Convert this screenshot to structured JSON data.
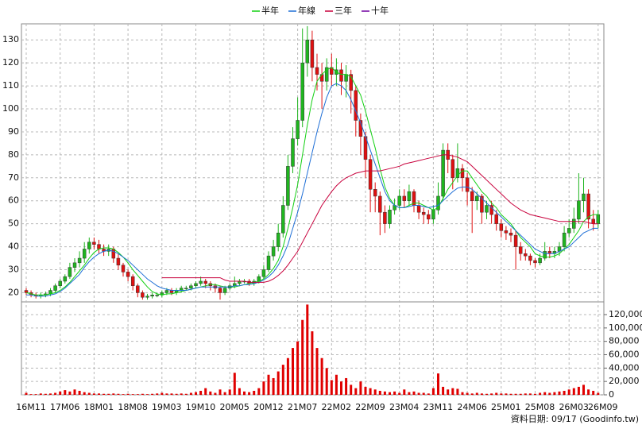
{
  "chart_data": {
    "type": "candlestick",
    "legend": "top",
    "grid": true,
    "footnote": "資料日期: 09/17 (Goodinfo.tw)",
    "up_color": "#1fb51f",
    "down_color": "#e01010",
    "volume_color": "#e00000",
    "categories": [
      "16M11",
      null,
      null,
      null,
      null,
      null,
      null,
      "17M06",
      null,
      null,
      null,
      null,
      null,
      null,
      "18M01",
      null,
      null,
      null,
      null,
      null,
      null,
      "18M08",
      null,
      null,
      null,
      null,
      null,
      null,
      "19M03",
      null,
      null,
      null,
      null,
      null,
      null,
      "19M10",
      null,
      null,
      null,
      null,
      null,
      null,
      "20M05",
      null,
      null,
      null,
      null,
      null,
      null,
      "20M12",
      null,
      null,
      null,
      null,
      null,
      null,
      "21M07",
      null,
      null,
      null,
      null,
      null,
      null,
      "22M02",
      null,
      null,
      null,
      null,
      null,
      null,
      "22M09",
      null,
      null,
      null,
      null,
      null,
      null,
      "23M04",
      null,
      null,
      null,
      null,
      null,
      null,
      "23M11",
      null,
      null,
      null,
      null,
      null,
      null,
      "24M06",
      null,
      null,
      null,
      null,
      null,
      null,
      "25M01",
      null,
      null,
      null,
      null,
      null,
      null,
      "25M08",
      null,
      null,
      null,
      null,
      null,
      null,
      "26M03",
      null,
      null,
      null,
      null,
      null,
      "26M09"
    ],
    "open": [
      21,
      20,
      19,
      18.5,
      19,
      19.5,
      21,
      23,
      25,
      27,
      31,
      33,
      35,
      39,
      42,
      41,
      39,
      38,
      39,
      35,
      32,
      29,
      27,
      23,
      20,
      18,
      18.5,
      19,
      19,
      20,
      21,
      20,
      21,
      22,
      22,
      23,
      24,
      25,
      24,
      23,
      22,
      20,
      22,
      23,
      24,
      25,
      25,
      24,
      25,
      27,
      30,
      36,
      40,
      46,
      58,
      75,
      87,
      95,
      120,
      130,
      118,
      115,
      112,
      118,
      115,
      117,
      112,
      115,
      108,
      95,
      88,
      78,
      65,
      62,
      55,
      50,
      56,
      58,
      62,
      60,
      64,
      58,
      55,
      54,
      52,
      56,
      62,
      82,
      78,
      70,
      74,
      70,
      64,
      60,
      62,
      55,
      58,
      54,
      50,
      47,
      46,
      45,
      40,
      37,
      36,
      34,
      33,
      35,
      38,
      37,
      38,
      40,
      46,
      48,
      52,
      60,
      63,
      52,
      50
    ],
    "high": [
      22,
      21,
      20,
      20,
      20.5,
      22,
      24,
      26,
      28,
      33,
      35,
      38,
      42,
      44,
      44,
      43,
      41,
      41,
      40,
      37,
      33,
      30,
      28,
      24,
      21,
      19.5,
      20,
      20,
      21,
      22,
      22,
      22,
      23,
      23,
      24,
      25,
      27,
      26,
      25,
      24,
      23,
      23,
      24,
      27,
      26,
      26,
      26,
      26,
      28,
      32,
      38,
      43,
      50,
      62,
      80,
      92,
      105,
      135,
      136,
      134,
      124,
      120,
      122,
      124,
      122,
      120,
      119,
      117,
      110,
      98,
      90,
      80,
      68,
      64,
      58,
      58,
      61,
      65,
      65,
      67,
      65,
      60,
      57,
      56,
      58,
      68,
      85,
      85,
      80,
      85,
      76,
      72,
      66,
      64,
      63,
      60,
      60,
      56,
      52,
      49,
      48,
      47,
      42,
      39,
      37,
      35,
      37,
      42,
      40,
      40,
      42,
      49,
      52,
      57,
      72,
      70,
      65,
      56,
      56
    ],
    "low": [
      19,
      18,
      17.5,
      17.5,
      18,
      18.5,
      20,
      22,
      24,
      26,
      29,
      31,
      33,
      37,
      39,
      37,
      36,
      36,
      33,
      30,
      27,
      25,
      21,
      18,
      17,
      17,
      17.5,
      18,
      18,
      19,
      19,
      19,
      20,
      21,
      21,
      22,
      23,
      22,
      21,
      20,
      17,
      19,
      21,
      22,
      23,
      24,
      23,
      23,
      24,
      26,
      29,
      34,
      38,
      44,
      56,
      72,
      84,
      92,
      114,
      112,
      108,
      100,
      108,
      110,
      110,
      106,
      105,
      98,
      88,
      80,
      70,
      55,
      55,
      45,
      46,
      48,
      54,
      56,
      57,
      58,
      55,
      52,
      50,
      50,
      50,
      54,
      60,
      72,
      65,
      68,
      64,
      58,
      46,
      56,
      50,
      52,
      50,
      47,
      44,
      43,
      42,
      30,
      34,
      34,
      32,
      31,
      32,
      34,
      35,
      35,
      36,
      38,
      44,
      46,
      50,
      55,
      48,
      47,
      48
    ],
    "close": [
      20,
      19,
      18.5,
      19,
      19.5,
      21,
      23,
      25,
      27,
      31,
      33,
      35,
      39,
      42,
      41,
      39,
      38,
      39,
      35,
      32,
      29,
      27,
      23,
      20,
      18,
      18.5,
      19,
      19,
      20,
      21,
      20,
      21,
      22,
      22,
      23,
      24,
      25,
      24,
      23,
      22,
      20,
      22,
      23,
      24,
      25,
      25,
      24,
      25,
      27,
      30,
      36,
      40,
      46,
      58,
      75,
      87,
      95,
      120,
      130,
      118,
      115,
      112,
      118,
      115,
      117,
      112,
      115,
      108,
      95,
      88,
      78,
      65,
      62,
      55,
      50,
      56,
      58,
      62,
      60,
      64,
      58,
      55,
      54,
      52,
      56,
      62,
      82,
      78,
      70,
      74,
      70,
      64,
      60,
      62,
      55,
      58,
      54,
      50,
      47,
      46,
      45,
      40,
      37,
      36,
      34,
      33,
      35,
      38,
      37,
      38,
      40,
      46,
      48,
      52,
      60,
      63,
      52,
      50,
      54
    ],
    "volume": [
      3000,
      1000,
      1000,
      2000,
      1500,
      2000,
      3000,
      5000,
      7000,
      5000,
      8000,
      6000,
      4000,
      3000,
      2000,
      2000,
      1500,
      1500,
      2000,
      1500,
      1000,
      1500,
      1000,
      1000,
      1500,
      1000,
      1500,
      2000,
      3000,
      2000,
      2000,
      1500,
      2000,
      1500,
      3000,
      4000,
      6000,
      10000,
      5000,
      3000,
      8000,
      4000,
      8000,
      33000,
      10000,
      5000,
      4000,
      6000,
      10000,
      20000,
      30000,
      25000,
      35000,
      45000,
      55000,
      70000,
      80000,
      112000,
      135000,
      95000,
      70000,
      55000,
      40000,
      22000,
      30000,
      20000,
      25000,
      15000,
      10000,
      20000,
      12000,
      10000,
      8000,
      6000,
      5000,
      4000,
      5000,
      3000,
      8000,
      4000,
      5000,
      3000,
      3000,
      2000,
      10000,
      32000,
      12000,
      8000,
      10000,
      9000,
      4000,
      3000,
      2000,
      3000,
      2000,
      1500,
      2000,
      3000,
      2000,
      2000,
      1500,
      1500,
      1500,
      2000,
      2000,
      1500,
      3000,
      4000,
      3000,
      4000,
      5000,
      6000,
      8000,
      10000,
      12000,
      15000,
      8000,
      6000,
      3000
    ],
    "series": [
      {
        "name": "半年",
        "color": "#12d012",
        "values": [
          20,
          19.5,
          19,
          19,
          19,
          19.5,
          20,
          21,
          22.5,
          24.5,
          27,
          29.5,
          32,
          35,
          37.5,
          39,
          39.5,
          39.5,
          39,
          37.5,
          35.5,
          33,
          30,
          27.5,
          25,
          22.5,
          20.5,
          19.5,
          19,
          19.5,
          19.5,
          20,
          20.5,
          21,
          21.5,
          22,
          22.5,
          23,
          23.5,
          23.5,
          23,
          22.5,
          22.5,
          22.5,
          23,
          23.5,
          24,
          24.5,
          25,
          26,
          28,
          30.5,
          34,
          40,
          48,
          57,
          67,
          80,
          93,
          104,
          112,
          115,
          117,
          118,
          116,
          115,
          115,
          114,
          110,
          106,
          99,
          91,
          83,
          74,
          66,
          61,
          58,
          57,
          57,
          58,
          59,
          59,
          58,
          57,
          56,
          57,
          61,
          65,
          68,
          71,
          73,
          73,
          70,
          67,
          64,
          62,
          59,
          57,
          54,
          52,
          50,
          47,
          44,
          42,
          40,
          37,
          36,
          35.5,
          35.5,
          36,
          37,
          39,
          41,
          44,
          47,
          51,
          53,
          54,
          54
        ]
      },
      {
        "name": "年線",
        "color": "#1f6fd6",
        "values": [
          19,
          19,
          18.5,
          18.5,
          18.5,
          19,
          19.5,
          20.5,
          22,
          24,
          26,
          28,
          31,
          33.5,
          35.5,
          37,
          38,
          38.5,
          38,
          37,
          35.5,
          34,
          32,
          30,
          28,
          26,
          24.5,
          23,
          22,
          21.5,
          21,
          21,
          21,
          21,
          21.5,
          22,
          22.5,
          22.5,
          22.5,
          22.5,
          22.5,
          22.5,
          22.5,
          23,
          23,
          23.5,
          23.5,
          24,
          24.5,
          25.5,
          27,
          29,
          32,
          36,
          41,
          48,
          55,
          63,
          72,
          81,
          90,
          98,
          105,
          110,
          111,
          110,
          108,
          104,
          99,
          94,
          88,
          82,
          76,
          70,
          64,
          60,
          58,
          57,
          57,
          57.5,
          58,
          58,
          57.5,
          57,
          57.5,
          58,
          60,
          62,
          64,
          65.5,
          66,
          66,
          65,
          63,
          61,
          59,
          57,
          55,
          53,
          51,
          49,
          47,
          45,
          43,
          41,
          39,
          38,
          37,
          37,
          37,
          38,
          39,
          40,
          42,
          44,
          46,
          47,
          48,
          48
        ]
      },
      {
        "name": "三年",
        "color": "#c8003c",
        "values": [
          null,
          null,
          null,
          null,
          null,
          null,
          null,
          null,
          null,
          null,
          null,
          null,
          null,
          null,
          null,
          null,
          null,
          null,
          null,
          null,
          null,
          null,
          null,
          null,
          null,
          null,
          null,
          null,
          26.5,
          26.5,
          26.5,
          26.5,
          26.5,
          26.5,
          26.5,
          26.5,
          26.5,
          26.5,
          26.5,
          26.5,
          26.5,
          25.5,
          25,
          25,
          25,
          25,
          24.5,
          24.5,
          24.5,
          24.5,
          25,
          26,
          27.5,
          29.5,
          32,
          35,
          38,
          42,
          46,
          50,
          54,
          58,
          61,
          64,
          66.5,
          68.5,
          70,
          71,
          72,
          72.5,
          73,
          73,
          73,
          73,
          73.5,
          74,
          74.5,
          75,
          76,
          76.5,
          77,
          77.5,
          78,
          78.5,
          79,
          79.5,
          80,
          80,
          79.5,
          79,
          78,
          77,
          75,
          73,
          71,
          69,
          67,
          65,
          63,
          61,
          59,
          57.5,
          56,
          55,
          54,
          53.5,
          53,
          52.5,
          52,
          51.5,
          51,
          51,
          51,
          51,
          51,
          51,
          50.5,
          50,
          50
        ]
      },
      {
        "name": "十年",
        "color": "#7000a0",
        "values": [
          null,
          null,
          null,
          null,
          null,
          null,
          null,
          null,
          null,
          null,
          null,
          null,
          null,
          null,
          null,
          null,
          null,
          null,
          null,
          null,
          null,
          null,
          null,
          null,
          null,
          null,
          null,
          null,
          null,
          null,
          null,
          null,
          null,
          null,
          null,
          null,
          null,
          null,
          null,
          null,
          null,
          null,
          null,
          null,
          null,
          null,
          null,
          null,
          null,
          null,
          null,
          null,
          null,
          null,
          null,
          null,
          null,
          null,
          null,
          null,
          null,
          null,
          null,
          null,
          null,
          null,
          null,
          null,
          null,
          null,
          null,
          null,
          null,
          null,
          null,
          null,
          null,
          null,
          null,
          null,
          null,
          null,
          null,
          null,
          null,
          null,
          null,
          null,
          null,
          null,
          null,
          null,
          null,
          null,
          null,
          null,
          null,
          null,
          null,
          null,
          null,
          null,
          null,
          null,
          null,
          null,
          null,
          null,
          null,
          null,
          null,
          null,
          null,
          null,
          null,
          null,
          null,
          null,
          null
        ]
      }
    ],
    "ylim": [
      16,
      137
    ],
    "yticks": [
      20,
      30,
      40,
      50,
      60,
      70,
      80,
      90,
      100,
      110,
      120,
      130
    ],
    "y2lim": [
      0,
      139000
    ],
    "y2ticks": [
      0,
      {
        "value": 20000,
        "label": "20,000"
      },
      {
        "value": 40000,
        "label": "40,000"
      },
      {
        "value": 60000,
        "label": "60,000"
      },
      {
        "value": 80000,
        "label": "80,000"
      },
      {
        "value": 100000,
        "label": "100,000"
      },
      {
        "value": 120000,
        "label": "120,000"
      }
    ]
  }
}
